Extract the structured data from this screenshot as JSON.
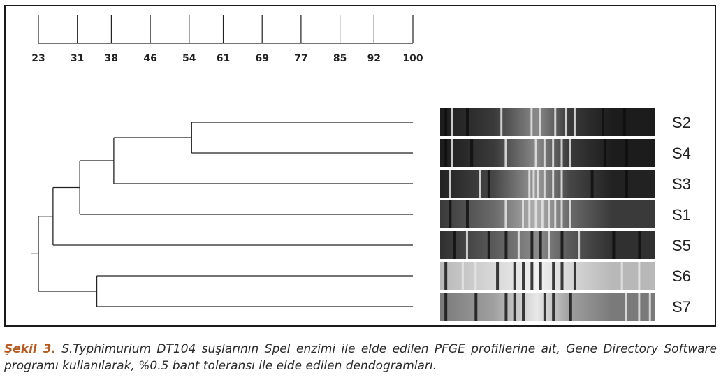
{
  "scale": {
    "ticks": [
      "23",
      "31",
      "38",
      "46",
      "54",
      "61",
      "69",
      "77",
      "85",
      "92",
      "100"
    ]
  },
  "dendrogram": {
    "leaves": [
      {
        "label": "S2",
        "bands": {
          "base": "#1c1c1c",
          "mid": "#3a3a3a",
          "light": "#8a8a8a",
          "bright": [
            0.05,
            0.28,
            0.42,
            0.46,
            0.53,
            0.58,
            0.62
          ],
          "dark": [
            0.02,
            0.12,
            0.75,
            0.85
          ]
        }
      },
      {
        "label": "S4",
        "bands": {
          "base": "#1c1c1c",
          "mid": "#3a3a3a",
          "light": "#8a8a8a",
          "bright": [
            0.05,
            0.3,
            0.44,
            0.48,
            0.52,
            0.56,
            0.6
          ],
          "dark": [
            0.02,
            0.14,
            0.76,
            0.86
          ]
        }
      },
      {
        "label": "S3",
        "bands": {
          "base": "#222222",
          "mid": "#474747",
          "light": "#9a9a9a",
          "bright": [
            0.04,
            0.18,
            0.41,
            0.43,
            0.45,
            0.48,
            0.52,
            0.56
          ],
          "dark": [
            0.22,
            0.7,
            0.86
          ]
        }
      },
      {
        "label": "S1",
        "bands": {
          "base": "#3a3a3a",
          "mid": "#6a6a6a",
          "light": "#b0b0b0",
          "bright": [
            0.3,
            0.38,
            0.41,
            0.44,
            0.47,
            0.5,
            0.53,
            0.56,
            0.6
          ],
          "dark": [
            0.04,
            0.12
          ]
        }
      },
      {
        "label": "S5",
        "bands": {
          "base": "#303030",
          "mid": "#5a5a5a",
          "light": "#8c8c8c",
          "bright": [
            0.12,
            0.36,
            0.5,
            0.64
          ],
          "dark": [
            0.06,
            0.22,
            0.3,
            0.42,
            0.46,
            0.56,
            0.8,
            0.92
          ]
        }
      },
      {
        "label": "S6",
        "bands": {
          "base": "#b8b8b8",
          "mid": "#d8d8d8",
          "light": "#f0f0f0",
          "bright": [
            0.1,
            0.16,
            0.84,
            0.92
          ],
          "dark": [
            0.02,
            0.26,
            0.34,
            0.38,
            0.42,
            0.46,
            0.52,
            0.56,
            0.62
          ]
        }
      },
      {
        "label": "S7",
        "bands": {
          "base": "#7a7a7a",
          "mid": "#a0a0a0",
          "light": "#e8e8e8",
          "bright": [
            0.86,
            0.92,
            0.97
          ],
          "dark": [
            0.02,
            0.16,
            0.3,
            0.34,
            0.38,
            0.48,
            0.52,
            0.6
          ]
        }
      }
    ],
    "clusters": [
      {
        "children": [
          0,
          1
        ],
        "similarity": 54.5
      },
      {
        "children": [
          "c0",
          2
        ],
        "similarity": 38.5
      },
      {
        "children": [
          "c1",
          3
        ],
        "similarity": 31.5
      },
      {
        "children": [
          "c2",
          4
        ],
        "similarity": 26.0
      },
      {
        "children": [
          5,
          6
        ],
        "similarity": 35.0
      },
      {
        "children": [
          "c3",
          "c4"
        ],
        "similarity": 23.0
      }
    ]
  },
  "caption": {
    "label": "Şekil 3.",
    "text": " S.Typhimurium DT104 suşlarının SpeI enzimi ile elde edilen PFGE profillerine ait, Gene Directory Software programı kullanılarak, %0.5 bant toleransı ile elde edilen dendogramları."
  }
}
